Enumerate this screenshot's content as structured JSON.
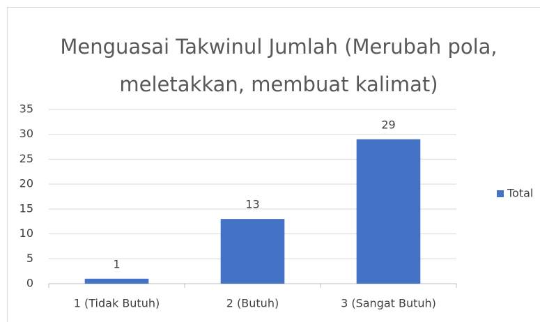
{
  "chart_data": {
    "type": "bar",
    "title": "Menguasai Takwinul Jumlah (Merubah pola, meletakkan, membuat kalimat)",
    "categories": [
      "1 (Tidak Butuh)",
      "2 (Butuh)",
      "3 (Sangat Butuh)"
    ],
    "series": [
      {
        "name": "Total",
        "color": "#4472c4",
        "values": [
          1,
          13,
          29
        ]
      }
    ],
    "ylim": [
      0,
      35
    ],
    "yticks": [
      0,
      5,
      10,
      15,
      20,
      25,
      30,
      35
    ],
    "grid": true,
    "legend": "right",
    "data_labels": true
  }
}
